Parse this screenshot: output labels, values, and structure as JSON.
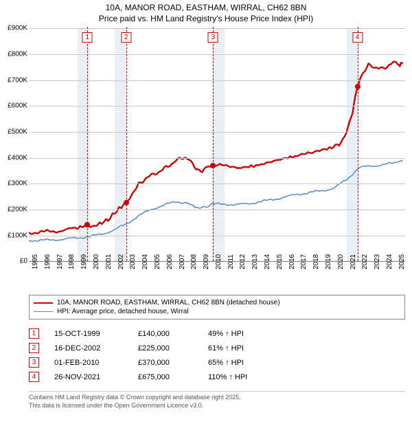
{
  "title": {
    "line1": "10A, MANOR ROAD, EASTHAM, WIRRAL, CH62 8BN",
    "line2": "Price paid vs. HM Land Registry's House Price Index (HPI)"
  },
  "chart": {
    "type": "line",
    "background_color": "#ffffff",
    "grid_color": "#c8c8c8",
    "x_range": [
      1995,
      2025.8
    ],
    "y_range": [
      0,
      900
    ],
    "y_ticks": [
      0,
      100,
      200,
      300,
      400,
      500,
      600,
      700,
      800,
      900
    ],
    "y_tick_labels": [
      "£0",
      "£100K",
      "£200K",
      "£300K",
      "£400K",
      "£500K",
      "£600K",
      "£700K",
      "£800K",
      "£900K"
    ],
    "x_ticks": [
      1995,
      1996,
      1997,
      1998,
      1999,
      2000,
      2001,
      2002,
      2003,
      2004,
      2005,
      2006,
      2007,
      2008,
      2009,
      2010,
      2011,
      2012,
      2013,
      2014,
      2015,
      2016,
      2017,
      2018,
      2019,
      2020,
      2021,
      2022,
      2023,
      2024,
      2025
    ],
    "hatched_year_bands": [
      1999,
      2002,
      2010,
      2021
    ],
    "series": [
      {
        "name": "property",
        "label": "10A, MANOR ROAD, EASTHAM, WIRRAL, CH62 8BN (detached house)",
        "color": "#cc0000",
        "line_width": 2.4,
        "points": [
          [
            1995,
            110
          ],
          [
            1996,
            112
          ],
          [
            1997,
            115
          ],
          [
            1998,
            120
          ],
          [
            1999,
            128
          ],
          [
            1999.8,
            140
          ],
          [
            2000.3,
            138
          ],
          [
            2000.8,
            145
          ],
          [
            2001.5,
            160
          ],
          [
            2002.2,
            195
          ],
          [
            2002.95,
            225
          ],
          [
            2003.5,
            265
          ],
          [
            2004,
            300
          ],
          [
            2004.6,
            320
          ],
          [
            2005.2,
            335
          ],
          [
            2005.8,
            350
          ],
          [
            2006.4,
            365
          ],
          [
            2007,
            390
          ],
          [
            2007.6,
            395
          ],
          [
            2008.1,
            390
          ],
          [
            2008.7,
            360
          ],
          [
            2009.2,
            345
          ],
          [
            2009.7,
            365
          ],
          [
            2010.1,
            370
          ],
          [
            2010.8,
            373
          ],
          [
            2011.5,
            365
          ],
          [
            2012.2,
            360
          ],
          [
            2013,
            365
          ],
          [
            2013.8,
            370
          ],
          [
            2014.5,
            380
          ],
          [
            2015.2,
            388
          ],
          [
            2016,
            398
          ],
          [
            2016.8,
            405
          ],
          [
            2017.5,
            415
          ],
          [
            2018.2,
            420
          ],
          [
            2019,
            430
          ],
          [
            2019.8,
            438
          ],
          [
            2020.4,
            448
          ],
          [
            2021,
            500
          ],
          [
            2021.5,
            580
          ],
          [
            2021.9,
            675
          ],
          [
            2022.3,
            725
          ],
          [
            2022.8,
            760
          ],
          [
            2023.3,
            740
          ],
          [
            2023.8,
            748
          ],
          [
            2024.3,
            752
          ],
          [
            2024.8,
            770
          ],
          [
            2025.3,
            755
          ],
          [
            2025.6,
            765
          ]
        ]
      },
      {
        "name": "hpi",
        "label": "HPI: Average price, detached house, Wirral",
        "color": "#5a8fc7",
        "line_width": 1.6,
        "points": [
          [
            1995,
            80
          ],
          [
            1996,
            80
          ],
          [
            1997,
            82
          ],
          [
            1998,
            85
          ],
          [
            1999,
            90
          ],
          [
            2000,
            95
          ],
          [
            2001,
            105
          ],
          [
            2002,
            120
          ],
          [
            2003,
            145
          ],
          [
            2004,
            175
          ],
          [
            2005,
            200
          ],
          [
            2006,
            215
          ],
          [
            2007,
            230
          ],
          [
            2008,
            225
          ],
          [
            2008.8,
            205
          ],
          [
            2009.5,
            210
          ],
          [
            2010,
            220
          ],
          [
            2011,
            220
          ],
          [
            2012,
            218
          ],
          [
            2013,
            222
          ],
          [
            2014,
            230
          ],
          [
            2015,
            238
          ],
          [
            2016,
            248
          ],
          [
            2017,
            258
          ],
          [
            2018,
            265
          ],
          [
            2019,
            272
          ],
          [
            2020,
            282
          ],
          [
            2021,
            315
          ],
          [
            2022,
            360
          ],
          [
            2023,
            368
          ],
          [
            2024,
            372
          ],
          [
            2025,
            380
          ],
          [
            2025.6,
            385
          ]
        ]
      }
    ],
    "sale_markers": [
      {
        "n": "1",
        "year": 1999.79,
        "value": 140
      },
      {
        "n": "2",
        "year": 2002.96,
        "value": 225
      },
      {
        "n": "3",
        "year": 2010.09,
        "value": 370
      },
      {
        "n": "4",
        "year": 2021.9,
        "value": 675
      }
    ]
  },
  "legend": {
    "items": [
      {
        "color": "#cc0000",
        "width": 2.5,
        "label": "10A, MANOR ROAD, EASTHAM, WIRRAL, CH62 8BN (detached house)"
      },
      {
        "color": "#5a8fc7",
        "width": 1.8,
        "label": "HPI: Average price, detached house, Wirral"
      }
    ]
  },
  "sales_table": {
    "rows": [
      {
        "n": "1",
        "date": "15-OCT-1999",
        "price": "£140,000",
        "pct": "49% ↑ HPI"
      },
      {
        "n": "2",
        "date": "16-DEC-2002",
        "price": "£225,000",
        "pct": "61% ↑ HPI"
      },
      {
        "n": "3",
        "date": "01-FEB-2010",
        "price": "£370,000",
        "pct": "65% ↑ HPI"
      },
      {
        "n": "4",
        "date": "26-NOV-2021",
        "price": "£675,000",
        "pct": "110% ↑ HPI"
      }
    ]
  },
  "footer": {
    "line1": "Contains HM Land Registry data © Crown copyright and database right 2025.",
    "line2": "This data is licensed under the Open Government Licence v3.0."
  }
}
